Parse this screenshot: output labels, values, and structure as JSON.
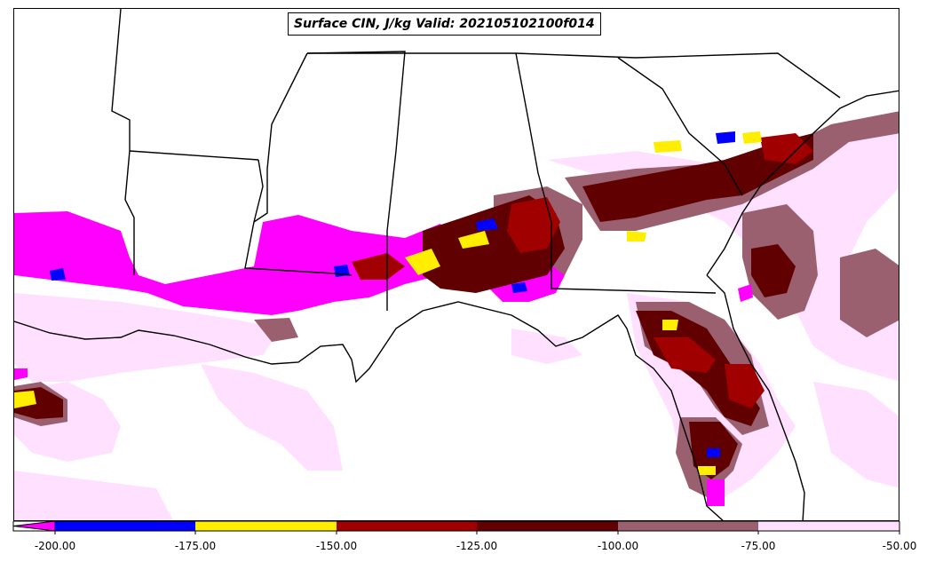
{
  "title": "Surface CIN, J/kg Valid: 202105102100f014",
  "colorbar": {
    "ticks": [
      "-200.00",
      "-175.00",
      "-150.00",
      "-125.00",
      "-100.00",
      "-75.00",
      "-50.00"
    ],
    "bins": [
      {
        "color": "#ff00ff"
      },
      {
        "color": "#0000ff"
      },
      {
        "color": "#ffee00"
      },
      {
        "color": "#a00000"
      },
      {
        "color": "#600000"
      },
      {
        "color": "#9a6070"
      },
      {
        "color": "#ffe0ff"
      }
    ]
  },
  "legend_colors": {
    "ocean_land_outline": "#000000",
    "background": "#ffffff"
  }
}
